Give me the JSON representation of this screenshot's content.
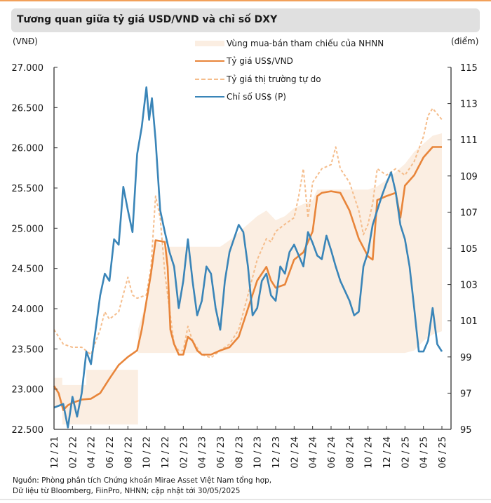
{
  "title": "Tương quan giữa tỷ giá USD/VND và chỉ số DXY",
  "units": {
    "left": "(VNĐ)",
    "right": "(điểm)"
  },
  "legend": [
    {
      "key": "band",
      "label": "Vùng mua-bán tham chiếu của NHNN"
    },
    {
      "key": "usdvnd",
      "label": "Tỷ giá US$/VND"
    },
    {
      "key": "free",
      "label": "Tỷ giá thị trường tự do"
    },
    {
      "key": "dxy",
      "label": "Chỉ số US$ (P)"
    }
  ],
  "source": [
    "Nguồn: Phòng phân tích Chứng khoán Mirae Asset Việt Nam tổng hợp,",
    "Dữ liệu từ Bloomberg, FiinPro, NHNN; cập nhật tới 30/05/2025"
  ],
  "colors": {
    "band": "#fbeee2",
    "usdvnd": "#e8853a",
    "free": "#f5bd8c",
    "dxy": "#3a85b8",
    "title_bg": "#e0e0e0",
    "accent_rule": "#f2a05a"
  },
  "chart_data": {
    "type": "line",
    "title": "Tương quan giữa tỷ giá USD/VND và chỉ số DXY",
    "xlabel": "",
    "ylabel": "(VNĐ)",
    "ylabel_right": "(điểm)",
    "x_unit": "months since 12/2021",
    "x_ticks": [
      "12 / 21",
      "02 / 22",
      "04 / 22",
      "06 / 22",
      "08 / 22",
      "10 / 22",
      "12 / 22",
      "02 / 23",
      "04 / 23",
      "06 / 23",
      "08 / 23",
      "10 / 23",
      "12 / 23",
      "02 / 24",
      "04 / 24",
      "06 / 24",
      "08 / 24",
      "10 / 24",
      "12 / 24",
      "02 / 25",
      "04 / 25",
      "06 / 25"
    ],
    "xlim": [
      0,
      42
    ],
    "ylim_left": [
      22500,
      27000
    ],
    "y_ticks_left": [
      "22.500",
      "23.000",
      "23.500",
      "24.000",
      "24.500",
      "25.000",
      "25.500",
      "26.000",
      "26.500",
      "27.000"
    ],
    "ylim_right": [
      95,
      115
    ],
    "y_ticks_right": [
      "95",
      "97",
      "99",
      "101",
      "103",
      "105",
      "107",
      "109",
      "111",
      "113",
      "115"
    ],
    "grid": false,
    "legend_position": "top-center",
    "band": {
      "name": "Vùng mua-bán tham chiếu của NHNN",
      "axis": "left",
      "x": [
        0,
        0.9,
        0.9,
        3.5,
        3.5,
        7.3,
        7.3,
        9.1,
        9.1,
        10,
        10.5,
        11,
        11.8,
        12,
        14,
        16,
        18,
        19,
        20,
        21,
        22,
        23,
        24,
        25,
        26,
        27,
        28,
        28.5,
        29,
        31,
        33,
        34,
        35,
        36,
        37,
        38,
        39,
        40,
        41,
        42
      ],
      "upper": [
        23140,
        23140,
        23050,
        23050,
        23240,
        23240,
        23240,
        23240,
        23740,
        24100,
        24500,
        24850,
        24780,
        24770,
        24770,
        24770,
        24770,
        24850,
        24950,
        25050,
        25150,
        25220,
        25100,
        25150,
        25250,
        25300,
        25350,
        25480,
        25480,
        25480,
        25480,
        25480,
        25520,
        25600,
        25700,
        25800,
        25950,
        26050,
        26150,
        26180
      ],
      "lower": [
        22780,
        22780,
        22560,
        22560,
        22560,
        22560,
        22560,
        22560,
        23450,
        23450,
        23450,
        23450,
        23450,
        23450,
        23450,
        23450,
        23450,
        23450,
        23450,
        23450,
        23450,
        23450,
        23450,
        23450,
        23450,
        23450,
        23450,
        23450,
        23450,
        23450,
        23450,
        23450,
        23450,
        23450,
        23450,
        23450,
        23480,
        23600,
        23680,
        23720
      ]
    },
    "series": [
      {
        "name": "Tỷ giá US$/VND",
        "axis": "left",
        "style": "solid",
        "x": [
          0,
          0.5,
          1,
          1.5,
          2,
          3,
          4,
          5,
          6,
          7,
          8,
          9,
          9.5,
          10,
          10.5,
          11,
          12,
          12.3,
          12.6,
          13,
          13.5,
          14,
          14.5,
          15,
          15.5,
          16,
          17,
          18,
          19,
          20,
          21,
          22,
          23,
          23.5,
          24,
          25,
          26,
          27,
          28,
          28.5,
          29,
          30,
          31,
          32,
          33,
          34,
          34.5,
          35,
          36,
          37,
          37.5,
          38,
          39,
          40,
          41,
          42
        ],
        "values": [
          23040,
          22950,
          22740,
          22800,
          22830,
          22870,
          22880,
          22950,
          23130,
          23300,
          23400,
          23480,
          23740,
          24090,
          24440,
          24850,
          24830,
          24520,
          23740,
          23560,
          23430,
          23430,
          23650,
          23600,
          23480,
          23430,
          23430,
          23480,
          23520,
          23650,
          24000,
          24350,
          24520,
          24350,
          24260,
          24300,
          24610,
          24700,
          24960,
          25400,
          25440,
          25460,
          25440,
          25220,
          24870,
          24650,
          24610,
          25350,
          25400,
          25440,
          25130,
          25530,
          25660,
          25880,
          26010,
          26010
        ]
      },
      {
        "name": "Tỷ giá thị trường tự do",
        "axis": "left",
        "style": "dashed",
        "x": [
          0,
          0.5,
          1,
          2,
          3,
          4,
          5,
          5.5,
          6,
          7,
          8,
          8.5,
          9,
          10,
          10.5,
          11,
          11.5,
          12,
          12.5,
          13,
          13.5,
          14,
          14.5,
          15,
          16,
          17,
          18,
          19,
          20,
          21,
          22,
          22.5,
          23,
          23.5,
          24,
          25,
          26,
          26.5,
          27,
          27.5,
          28,
          29,
          30,
          30.5,
          31,
          32,
          33,
          33.5,
          34,
          34.5,
          35,
          36,
          37,
          38,
          39,
          40,
          40.5,
          41,
          42
        ],
        "values": [
          23740,
          23650,
          23560,
          23520,
          23520,
          23430,
          23740,
          23960,
          23870,
          23960,
          24390,
          24170,
          24130,
          24170,
          24520,
          25400,
          25130,
          24440,
          24000,
          23560,
          23480,
          23480,
          23780,
          23600,
          23430,
          23390,
          23480,
          23560,
          23740,
          24170,
          24610,
          24740,
          24870,
          24830,
          24960,
          25050,
          25130,
          25400,
          25740,
          25130,
          25570,
          25740,
          25790,
          26010,
          25740,
          25570,
          25220,
          24920,
          25050,
          25310,
          25740,
          25660,
          25740,
          25660,
          25830,
          26140,
          26400,
          26490,
          26350
        ]
      },
      {
        "name": "Chỉ số US$ (P)",
        "axis": "right",
        "style": "solid",
        "x": [
          0,
          1,
          1.5,
          2,
          2.5,
          3,
          3.5,
          4,
          4.5,
          5,
          5.5,
          6,
          6.5,
          7,
          7.5,
          8,
          8.5,
          9,
          9.5,
          10,
          10.3,
          10.6,
          11,
          11.5,
          12,
          12.5,
          13,
          13.5,
          14,
          14.5,
          15,
          15.5,
          16,
          16.5,
          17,
          17.5,
          18,
          18.5,
          19,
          20,
          20.5,
          21,
          21.5,
          22,
          22.5,
          23,
          23.5,
          24,
          24.5,
          25,
          25.5,
          26,
          27,
          27.5,
          28,
          28.5,
          29,
          29.5,
          30,
          30.5,
          31,
          32,
          32.5,
          33,
          33.5,
          34,
          34.5,
          35,
          35.5,
          36,
          36.5,
          37,
          37.5,
          38,
          38.5,
          39,
          39.5,
          40,
          40.5,
          41,
          41.5,
          42
        ],
        "values": [
          96.2,
          96.4,
          95.1,
          96.8,
          95.7,
          97.0,
          99.3,
          98.6,
          100.5,
          102.4,
          103.6,
          103.2,
          105.5,
          105.2,
          108.4,
          107.1,
          105.9,
          110.2,
          111.7,
          113.9,
          112.1,
          113.3,
          111.0,
          107.1,
          105.9,
          104.8,
          104.0,
          101.7,
          103.2,
          105.5,
          103.2,
          101.3,
          102.1,
          104.0,
          103.6,
          101.7,
          100.5,
          103.2,
          104.8,
          106.3,
          105.9,
          104.0,
          101.3,
          101.7,
          103.2,
          103.6,
          102.4,
          102.1,
          104.0,
          103.6,
          104.8,
          105.2,
          104.0,
          105.9,
          105.3,
          104.6,
          104.4,
          105.7,
          104.9,
          104.0,
          103.2,
          102.1,
          101.3,
          101.5,
          104.0,
          104.8,
          106.3,
          107.1,
          107.9,
          108.6,
          109.2,
          108.1,
          106.3,
          105.5,
          104.0,
          101.7,
          99.3,
          99.3,
          99.9,
          101.7,
          99.7,
          99.3
        ]
      }
    ]
  }
}
